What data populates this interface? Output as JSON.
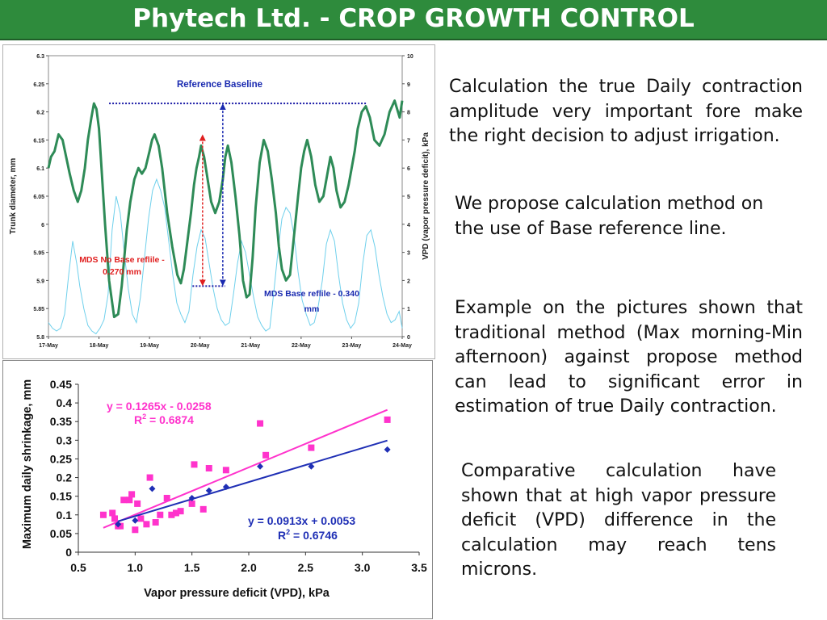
{
  "header": {
    "title": "Phytech Ltd. - CROP GROWTH CONTROL",
    "background": "#2e8b3c"
  },
  "paragraphs": [
    "Calculation the true Daily contraction amplitude very important fore make the right decision to adjust  irrigation.",
    "We propose calculation method on the use of Base reference line.",
    "Example on the pictures shown that traditional method (Max morning-Min afternoon) against propose method can lead to significant error in estimation of true Daily contraction.",
    "Comparative calculation have shown that at high vapor pressure deficit (VPD) difference in the calculation may reach tens microns."
  ],
  "chart_data": [
    {
      "type": "line",
      "xlabel": "",
      "ylabel": "Trunk diameter, mm",
      "y2label": "VPD (vapor pressure deficit), kPa",
      "categories": [
        "17-May",
        "18-May",
        "19-May",
        "20-May",
        "21-May",
        "22-May",
        "23-May",
        "24-May"
      ],
      "ylim": [
        5.8,
        6.3
      ],
      "y_ticks": [
        "5.8",
        "5.85",
        "5.9",
        "5.95",
        "6",
        "6.05",
        "6.1",
        "6.15",
        "6.2",
        "6.25",
        "6.3"
      ],
      "y2lim": [
        0,
        10
      ],
      "y2_ticks": [
        "0",
        "1",
        "2",
        "3",
        "4",
        "5",
        "6",
        "7",
        "8",
        "9",
        "10"
      ],
      "series": [
        {
          "role": "trunk diameter",
          "axis": "left",
          "color": "#2e8b57",
          "x": [
            0,
            0.05,
            0.12,
            0.2,
            0.28,
            0.35,
            0.42,
            0.5,
            0.58,
            0.65,
            0.72,
            0.78,
            0.85,
            0.9,
            0.95,
            1.0,
            1.05,
            1.12,
            1.2,
            1.3,
            1.38,
            1.45,
            1.5,
            1.55,
            1.62,
            1.7,
            1.78,
            1.85,
            1.92,
            2.0,
            2.05,
            2.1,
            2.18,
            2.25,
            2.35,
            2.45,
            2.55,
            2.62,
            2.68,
            2.75,
            2.82,
            2.88,
            2.93,
            2.98,
            3.02,
            3.08,
            3.15,
            3.22,
            3.3,
            3.38,
            3.45,
            3.5,
            3.55,
            3.62,
            3.7,
            3.78,
            3.85,
            3.92,
            3.98,
            4.04,
            4.1,
            4.18,
            4.26,
            4.34,
            4.42,
            4.5,
            4.56,
            4.62,
            4.7,
            4.78,
            4.86,
            4.94,
            5.0,
            5.06,
            5.12,
            5.2,
            5.28,
            5.36,
            5.44,
            5.52,
            5.58,
            5.64,
            5.7,
            5.78,
            5.86,
            5.94,
            6.0,
            6.06,
            6.12,
            6.2,
            6.28,
            6.36,
            6.45,
            6.55,
            6.65,
            6.75,
            6.85,
            6.95,
            7.0
          ],
          "values": [
            6.1,
            6.12,
            6.13,
            6.16,
            6.15,
            6.12,
            6.09,
            6.06,
            6.04,
            6.06,
            6.1,
            6.15,
            6.19,
            6.215,
            6.205,
            6.17,
            6.1,
            6.0,
            5.9,
            5.835,
            5.84,
            5.89,
            5.94,
            5.99,
            6.04,
            6.08,
            6.1,
            6.09,
            6.1,
            6.13,
            6.15,
            6.16,
            6.14,
            6.1,
            6.02,
            5.96,
            5.91,
            5.895,
            5.92,
            5.97,
            6.02,
            6.07,
            6.1,
            6.12,
            6.14,
            6.12,
            6.08,
            6.04,
            6.02,
            6.04,
            6.08,
            6.12,
            6.14,
            6.11,
            6.05,
            5.98,
            5.9,
            5.87,
            5.875,
            5.94,
            6.03,
            6.11,
            6.15,
            6.13,
            6.08,
            6.02,
            5.96,
            5.92,
            5.9,
            5.91,
            5.98,
            6.05,
            6.1,
            6.13,
            6.15,
            6.12,
            6.07,
            6.04,
            6.05,
            6.09,
            6.12,
            6.1,
            6.06,
            6.03,
            6.04,
            6.07,
            6.1,
            6.13,
            6.17,
            6.2,
            6.21,
            6.19,
            6.15,
            6.14,
            6.16,
            6.2,
            6.22,
            6.19,
            6.22
          ]
        },
        {
          "role": "VPD",
          "axis": "right",
          "color": "#6fd0ec",
          "x": [
            0,
            0.08,
            0.16,
            0.24,
            0.32,
            0.4,
            0.48,
            0.56,
            0.62,
            0.7,
            0.78,
            0.86,
            0.94,
            1.02,
            1.1,
            1.18,
            1.26,
            1.34,
            1.42,
            1.5,
            1.58,
            1.66,
            1.74,
            1.82,
            1.9,
            1.98,
            2.06,
            2.14,
            2.22,
            2.3,
            2.38,
            2.46,
            2.54,
            2.62,
            2.7,
            2.78,
            2.86,
            2.94,
            3.02,
            3.1,
            3.18,
            3.26,
            3.34,
            3.42,
            3.5,
            3.58,
            3.66,
            3.74,
            3.82,
            3.9,
            3.98,
            4.06,
            4.14,
            4.22,
            4.3,
            4.38,
            4.46,
            4.54,
            4.62,
            4.7,
            4.78,
            4.86,
            4.94,
            5.02,
            5.1,
            5.18,
            5.26,
            5.34,
            5.42,
            5.5,
            5.58,
            5.66,
            5.74,
            5.82,
            5.9,
            5.98,
            6.06,
            6.14,
            6.22,
            6.3,
            6.38,
            6.46,
            6.54,
            6.62,
            6.7,
            6.78,
            6.86,
            6.94,
            7.0
          ],
          "values": [
            0.5,
            0.3,
            0.2,
            0.3,
            0.8,
            2.2,
            3.4,
            2.6,
            1.8,
            1.0,
            0.4,
            0.2,
            0.1,
            0.3,
            0.6,
            1.5,
            3.8,
            5.0,
            4.4,
            3.0,
            1.7,
            0.8,
            0.5,
            1.4,
            2.8,
            4.2,
            5.2,
            5.6,
            5.2,
            4.6,
            3.4,
            2.2,
            1.2,
            0.8,
            0.5,
            0.9,
            2.2,
            3.2,
            3.8,
            3.5,
            2.6,
            1.7,
            1.0,
            0.6,
            0.4,
            0.5,
            1.5,
            2.6,
            3.4,
            3.0,
            2.2,
            1.4,
            0.7,
            0.4,
            0.2,
            0.3,
            1.6,
            3.0,
            4.2,
            4.6,
            4.4,
            3.6,
            2.3,
            1.3,
            0.8,
            0.4,
            0.5,
            1.1,
            2.0,
            3.3,
            3.8,
            3.4,
            2.2,
            1.2,
            0.6,
            0.3,
            0.5,
            1.2,
            2.6,
            3.6,
            3.8,
            3.2,
            2.2,
            1.4,
            0.8,
            0.5,
            0.6,
            0.9,
            0.3
          ]
        }
      ],
      "annotations": {
        "reference": "Reference Baseline",
        "mds_no_base_1": "MDS No Base reflile -",
        "mds_no_base_2": "0.270 mm",
        "mds_base_1": "MDS  Base reflile - 0.340",
        "mds_base_2": "mm",
        "baseline_value": 6.215,
        "morning_max": 6.16,
        "afternoon_min": 5.89,
        "reference_x": [
          1.2,
          6.3
        ],
        "min_x": [
          2.85,
          3.5
        ],
        "red_arrow_x": 3.05,
        "blue_arrow_x": 3.45
      }
    },
    {
      "type": "scatter",
      "xlabel": "Vapor pressure deficit (VPD), kPa",
      "ylabel": "Maximum daily shrinkage, mm",
      "xlim": [
        0.5,
        3.5
      ],
      "ylim": [
        0,
        0.45
      ],
      "x_ticks": [
        "0.5",
        "1.0",
        "1.5",
        "2.0",
        "2.5",
        "3.0",
        "3.5"
      ],
      "y_ticks": [
        "0",
        "0.05",
        "0.1",
        "0.15",
        "0.2",
        "0.25",
        "0.3",
        "0.35",
        "0.4",
        "0.45"
      ],
      "series": [
        {
          "color": "#ff33cc",
          "marker": "square",
          "equation": "y = 0.1265x - 0.0258",
          "r2_prefix": "R",
          "r2_sup": "2",
          "r2_value": " = 0.6874",
          "slope": 0.1265,
          "intercept": -0.0258,
          "x": [
            0.72,
            0.8,
            0.82,
            0.85,
            0.87,
            0.9,
            0.95,
            0.97,
            1.0,
            1.02,
            1.05,
            1.1,
            1.13,
            1.18,
            1.22,
            1.28,
            1.32,
            1.36,
            1.4,
            1.5,
            1.52,
            1.6,
            1.65,
            1.8,
            2.1,
            2.15,
            2.55,
            3.22
          ],
          "values": [
            0.1,
            0.105,
            0.09,
            0.07,
            0.07,
            0.14,
            0.14,
            0.155,
            0.06,
            0.13,
            0.09,
            0.075,
            0.2,
            0.08,
            0.1,
            0.145,
            0.1,
            0.105,
            0.11,
            0.13,
            0.235,
            0.115,
            0.225,
            0.22,
            0.345,
            0.26,
            0.28,
            0.355
          ]
        },
        {
          "color": "#1f2fb5",
          "marker": "diamond",
          "equation": "y = 0.0913x + 0.0053",
          "r2_prefix": "R",
          "r2_sup": "2",
          "r2_value": " = 0.6746",
          "slope": 0.0913,
          "intercept": 0.0053,
          "x": [
            0.85,
            1.0,
            1.15,
            1.5,
            1.65,
            1.8,
            2.1,
            2.55,
            3.22
          ],
          "values": [
            0.075,
            0.085,
            0.17,
            0.145,
            0.165,
            0.175,
            0.23,
            0.23,
            0.275
          ]
        }
      ]
    }
  ]
}
